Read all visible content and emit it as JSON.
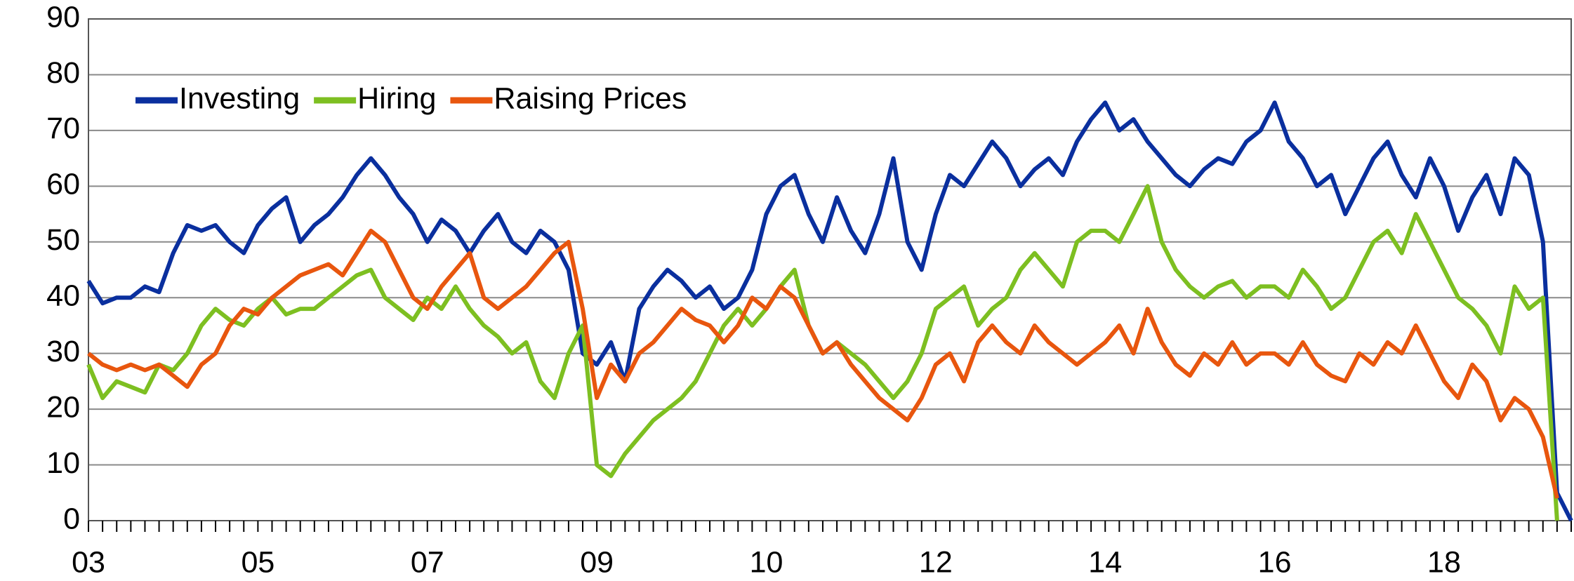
{
  "chart_data": {
    "type": "line",
    "categories": [
      "03",
      null,
      null,
      null,
      null,
      null,
      null,
      null,
      null,
      null,
      null,
      null,
      "05",
      null,
      null,
      null,
      null,
      null,
      null,
      null,
      null,
      null,
      null,
      null,
      "07",
      null,
      null,
      null,
      null,
      null,
      null,
      null,
      null,
      null,
      null,
      null,
      "09",
      null,
      null,
      null,
      null,
      null,
      null,
      null,
      null,
      null,
      null,
      null,
      "10",
      null,
      null,
      null,
      null,
      null,
      null,
      null,
      null,
      null,
      null,
      null,
      "12",
      null,
      null,
      null,
      null,
      null,
      null,
      null,
      null,
      null,
      null,
      null,
      "14",
      null,
      null,
      null,
      null,
      null,
      null,
      null,
      null,
      null,
      null,
      null,
      "16",
      null,
      null,
      null,
      null,
      null,
      null,
      null,
      null,
      null,
      null,
      null,
      "18",
      null,
      null,
      null,
      null,
      null,
      null,
      null,
      null,
      null
    ],
    "series": [
      {
        "name": "Investing",
        "color": "#0a2f9e",
        "values": [
          43,
          39,
          40,
          40,
          42,
          41,
          48,
          53,
          52,
          53,
          50,
          48,
          53,
          56,
          58,
          50,
          53,
          55,
          58,
          62,
          65,
          62,
          58,
          55,
          50,
          54,
          52,
          48,
          52,
          55,
          50,
          48,
          52,
          50,
          45,
          30,
          28,
          32,
          25,
          38,
          42,
          45,
          43,
          40,
          42,
          38,
          40,
          45,
          55,
          60,
          62,
          55,
          50,
          58,
          52,
          48,
          55,
          65,
          50,
          45,
          55,
          62,
          60,
          64,
          68,
          65,
          60,
          63,
          65,
          62,
          68,
          72,
          75,
          70,
          72,
          68,
          65,
          62,
          60,
          63,
          65,
          64,
          68,
          70,
          75,
          68,
          65,
          60,
          62,
          55,
          60,
          65,
          68,
          62,
          58,
          65,
          60,
          52,
          58,
          62,
          55,
          65,
          62,
          50,
          5,
          0
        ]
      },
      {
        "name": "Hiring",
        "color": "#7dbf21",
        "values": [
          28,
          22,
          25,
          24,
          23,
          28,
          27,
          30,
          35,
          38,
          36,
          35,
          38,
          40,
          37,
          38,
          38,
          40,
          42,
          44,
          45,
          40,
          38,
          36,
          40,
          38,
          42,
          38,
          35,
          33,
          30,
          32,
          25,
          22,
          30,
          35,
          10,
          8,
          12,
          15,
          18,
          20,
          22,
          25,
          30,
          35,
          38,
          35,
          38,
          42,
          45,
          35,
          30,
          32,
          30,
          28,
          25,
          22,
          25,
          30,
          38,
          40,
          42,
          35,
          38,
          40,
          45,
          48,
          45,
          42,
          50,
          52,
          52,
          50,
          55,
          60,
          50,
          45,
          42,
          40,
          42,
          43,
          40,
          42,
          42,
          40,
          45,
          42,
          38,
          40,
          45,
          50,
          52,
          48,
          55,
          50,
          45,
          40,
          38,
          35,
          30,
          42,
          38,
          40,
          0,
          null
        ]
      },
      {
        "name": "Raising Prices",
        "color": "#e8560e",
        "values": [
          30,
          28,
          27,
          28,
          27,
          28,
          26,
          24,
          28,
          30,
          35,
          38,
          37,
          40,
          42,
          44,
          45,
          46,
          44,
          48,
          52,
          50,
          45,
          40,
          38,
          42,
          45,
          48,
          40,
          38,
          40,
          42,
          45,
          48,
          50,
          38,
          22,
          28,
          25,
          30,
          32,
          35,
          38,
          36,
          35,
          32,
          35,
          40,
          38,
          42,
          40,
          35,
          30,
          32,
          28,
          25,
          22,
          20,
          18,
          22,
          28,
          30,
          25,
          32,
          35,
          32,
          30,
          35,
          32,
          30,
          28,
          30,
          32,
          35,
          30,
          38,
          32,
          28,
          26,
          30,
          28,
          32,
          28,
          30,
          30,
          28,
          32,
          28,
          26,
          25,
          30,
          28,
          32,
          30,
          35,
          30,
          25,
          22,
          28,
          25,
          18,
          22,
          20,
          15,
          4,
          null
        ]
      }
    ],
    "ylim": [
      0,
      90
    ],
    "yticks": [
      0,
      10,
      20,
      30,
      40,
      50,
      60,
      70,
      80,
      90
    ],
    "grid": true,
    "legend": "top-left"
  }
}
